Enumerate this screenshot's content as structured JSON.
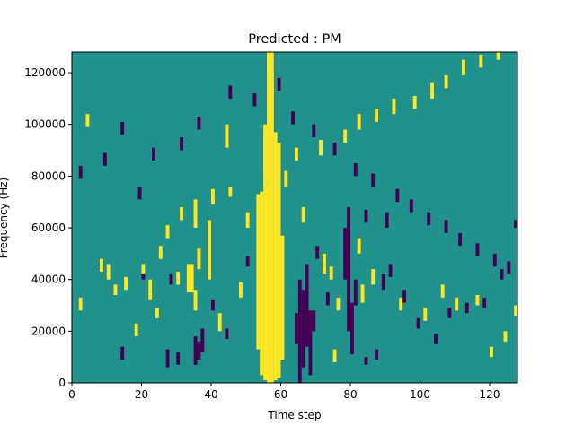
{
  "chart_data": {
    "type": "heatmap",
    "title": "Predicted : PM",
    "xlabel": "Time step",
    "ylabel": "Frequency (Hz)",
    "xlim": [
      0,
      128
    ],
    "ylim": [
      0,
      128000
    ],
    "x_ticks": [
      0,
      20,
      40,
      60,
      80,
      100,
      120
    ],
    "y_ticks": [
      0,
      20000,
      40000,
      60000,
      80000,
      100000,
      120000
    ],
    "x_tick_labels": [
      "0",
      "20",
      "40",
      "60",
      "80",
      "100",
      "120"
    ],
    "y_tick_labels": [
      "0",
      "20000",
      "40000",
      "60000",
      "80000",
      "100000",
      "120000"
    ],
    "grid": false,
    "colormap": "viridis",
    "colors": {
      "background": "#21918c",
      "low": "#440154",
      "high": "#fde725"
    },
    "cells_description": "Sparse binary-valued cells (low or high) on a teal background over a 128 x 128 grid of time steps by frequency bins; dense high-valued band around time steps 54-59 and low-valued clusters around time steps 64-68 and 78-80.",
    "high_cells": [
      [
        56,
        0,
        1,
        128
      ],
      [
        57,
        0,
        1,
        128
      ],
      [
        55,
        1,
        1,
        96
      ],
      [
        58,
        1,
        1,
        96
      ],
      [
        54,
        3,
        1,
        71
      ],
      [
        59,
        2,
        1,
        91
      ],
      [
        53,
        13,
        1,
        60
      ],
      [
        60,
        9,
        1,
        48
      ],
      [
        57,
        96,
        1,
        24
      ],
      [
        55,
        80,
        1,
        20
      ],
      [
        44,
        91,
        1,
        9
      ],
      [
        39,
        40,
        1,
        23
      ],
      [
        33,
        35,
        2,
        11
      ],
      [
        35,
        28,
        1,
        8
      ],
      [
        22,
        32,
        1,
        8
      ],
      [
        35,
        60,
        1,
        11
      ],
      [
        10,
        40,
        1,
        6
      ],
      [
        25,
        48,
        1,
        5
      ],
      [
        36,
        44,
        1,
        8
      ],
      [
        30,
        38,
        1,
        5
      ],
      [
        2,
        28,
        1,
        5
      ],
      [
        15,
        36,
        1,
        5
      ],
      [
        8,
        43,
        1,
        5
      ],
      [
        18,
        18,
        1,
        5
      ],
      [
        24,
        25,
        1,
        4
      ],
      [
        42,
        20,
        1,
        7
      ],
      [
        48,
        33,
        1,
        6
      ],
      [
        50,
        60,
        1,
        6
      ],
      [
        66,
        62,
        1,
        6
      ],
      [
        72,
        42,
        1,
        8
      ],
      [
        74,
        40,
        1,
        5
      ],
      [
        75,
        8,
        1,
        5
      ],
      [
        76,
        28,
        1,
        5
      ],
      [
        82,
        50,
        1,
        6
      ],
      [
        83,
        31,
        1,
        7
      ],
      [
        86,
        38,
        1,
        6
      ],
      [
        94,
        28,
        1,
        5
      ],
      [
        101,
        24,
        1,
        5
      ],
      [
        106,
        33,
        1,
        5
      ],
      [
        110,
        28,
        1,
        5
      ],
      [
        116,
        30,
        1,
        4
      ],
      [
        120,
        10,
        1,
        4
      ],
      [
        124,
        16,
        1,
        4
      ],
      [
        127,
        26,
        1,
        4
      ],
      [
        4,
        99,
        1,
        5
      ],
      [
        12,
        34,
        1,
        4
      ],
      [
        20,
        42,
        1,
        4
      ],
      [
        27,
        56,
        1,
        5
      ],
      [
        31,
        63,
        1,
        5
      ],
      [
        40,
        69,
        1,
        6
      ],
      [
        45,
        72,
        1,
        4
      ],
      [
        61,
        76,
        1,
        6
      ],
      [
        64,
        86,
        1,
        5
      ],
      [
        71,
        88,
        1,
        6
      ],
      [
        78,
        93,
        1,
        5
      ],
      [
        82,
        98,
        1,
        6
      ],
      [
        87,
        101,
        1,
        5
      ],
      [
        92,
        104,
        1,
        6
      ],
      [
        98,
        106,
        1,
        5
      ],
      [
        103,
        110,
        1,
        6
      ],
      [
        107,
        114,
        1,
        5
      ],
      [
        112,
        119,
        1,
        6
      ],
      [
        117,
        122,
        1,
        5
      ],
      [
        122,
        125,
        1,
        3
      ]
    ],
    "low_cells": [
      [
        65,
        0,
        1,
        40
      ],
      [
        66,
        6,
        1,
        30
      ],
      [
        67,
        14,
        1,
        32
      ],
      [
        68,
        3,
        1,
        25
      ],
      [
        64,
        15,
        1,
        12
      ],
      [
        69,
        20,
        1,
        8
      ],
      [
        79,
        20,
        1,
        48
      ],
      [
        80,
        11,
        1,
        20
      ],
      [
        78,
        40,
        1,
        20
      ],
      [
        81,
        30,
        1,
        10
      ],
      [
        35,
        7,
        1,
        11
      ],
      [
        36,
        9,
        1,
        7
      ],
      [
        37,
        12,
        1,
        9
      ],
      [
        30,
        7,
        1,
        5
      ],
      [
        27,
        6,
        1,
        7
      ],
      [
        14,
        9,
        1,
        5
      ],
      [
        20,
        40,
        1,
        4
      ],
      [
        28,
        38,
        1,
        4
      ],
      [
        40,
        28,
        1,
        4
      ],
      [
        44,
        17,
        1,
        4
      ],
      [
        50,
        45,
        1,
        4
      ],
      [
        70,
        48,
        1,
        5
      ],
      [
        73,
        30,
        1,
        5
      ],
      [
        84,
        7,
        1,
        3
      ],
      [
        87,
        9,
        1,
        4
      ],
      [
        89,
        36,
        1,
        6
      ],
      [
        91,
        41,
        1,
        5
      ],
      [
        95,
        31,
        1,
        5
      ],
      [
        99,
        21,
        1,
        4
      ],
      [
        104,
        15,
        1,
        4
      ],
      [
        108,
        25,
        1,
        4
      ],
      [
        113,
        27,
        1,
        4
      ],
      [
        118,
        29,
        1,
        4
      ],
      [
        123,
        40,
        1,
        4
      ],
      [
        127,
        60,
        1,
        3
      ],
      [
        90,
        60,
        1,
        6
      ],
      [
        84,
        62,
        1,
        5
      ],
      [
        2,
        79,
        1,
        5
      ],
      [
        9,
        84,
        1,
        5
      ],
      [
        14,
        96,
        1,
        5
      ],
      [
        19,
        71,
        1,
        5
      ],
      [
        23,
        86,
        1,
        5
      ],
      [
        31,
        90,
        1,
        5
      ],
      [
        36,
        98,
        1,
        5
      ],
      [
        45,
        110,
        1,
        5
      ],
      [
        52,
        107,
        1,
        5
      ],
      [
        59,
        113,
        1,
        5
      ],
      [
        63,
        100,
        1,
        5
      ],
      [
        69,
        95,
        1,
        5
      ],
      [
        75,
        88,
        1,
        5
      ],
      [
        81,
        80,
        1,
        5
      ],
      [
        86,
        76,
        1,
        5
      ],
      [
        93,
        70,
        1,
        5
      ],
      [
        97,
        66,
        1,
        5
      ],
      [
        102,
        61,
        1,
        5
      ],
      [
        107,
        58,
        1,
        5
      ],
      [
        111,
        53,
        1,
        5
      ],
      [
        116,
        49,
        1,
        5
      ],
      [
        121,
        45,
        1,
        5
      ],
      [
        125,
        42,
        1,
        5
      ]
    ]
  }
}
